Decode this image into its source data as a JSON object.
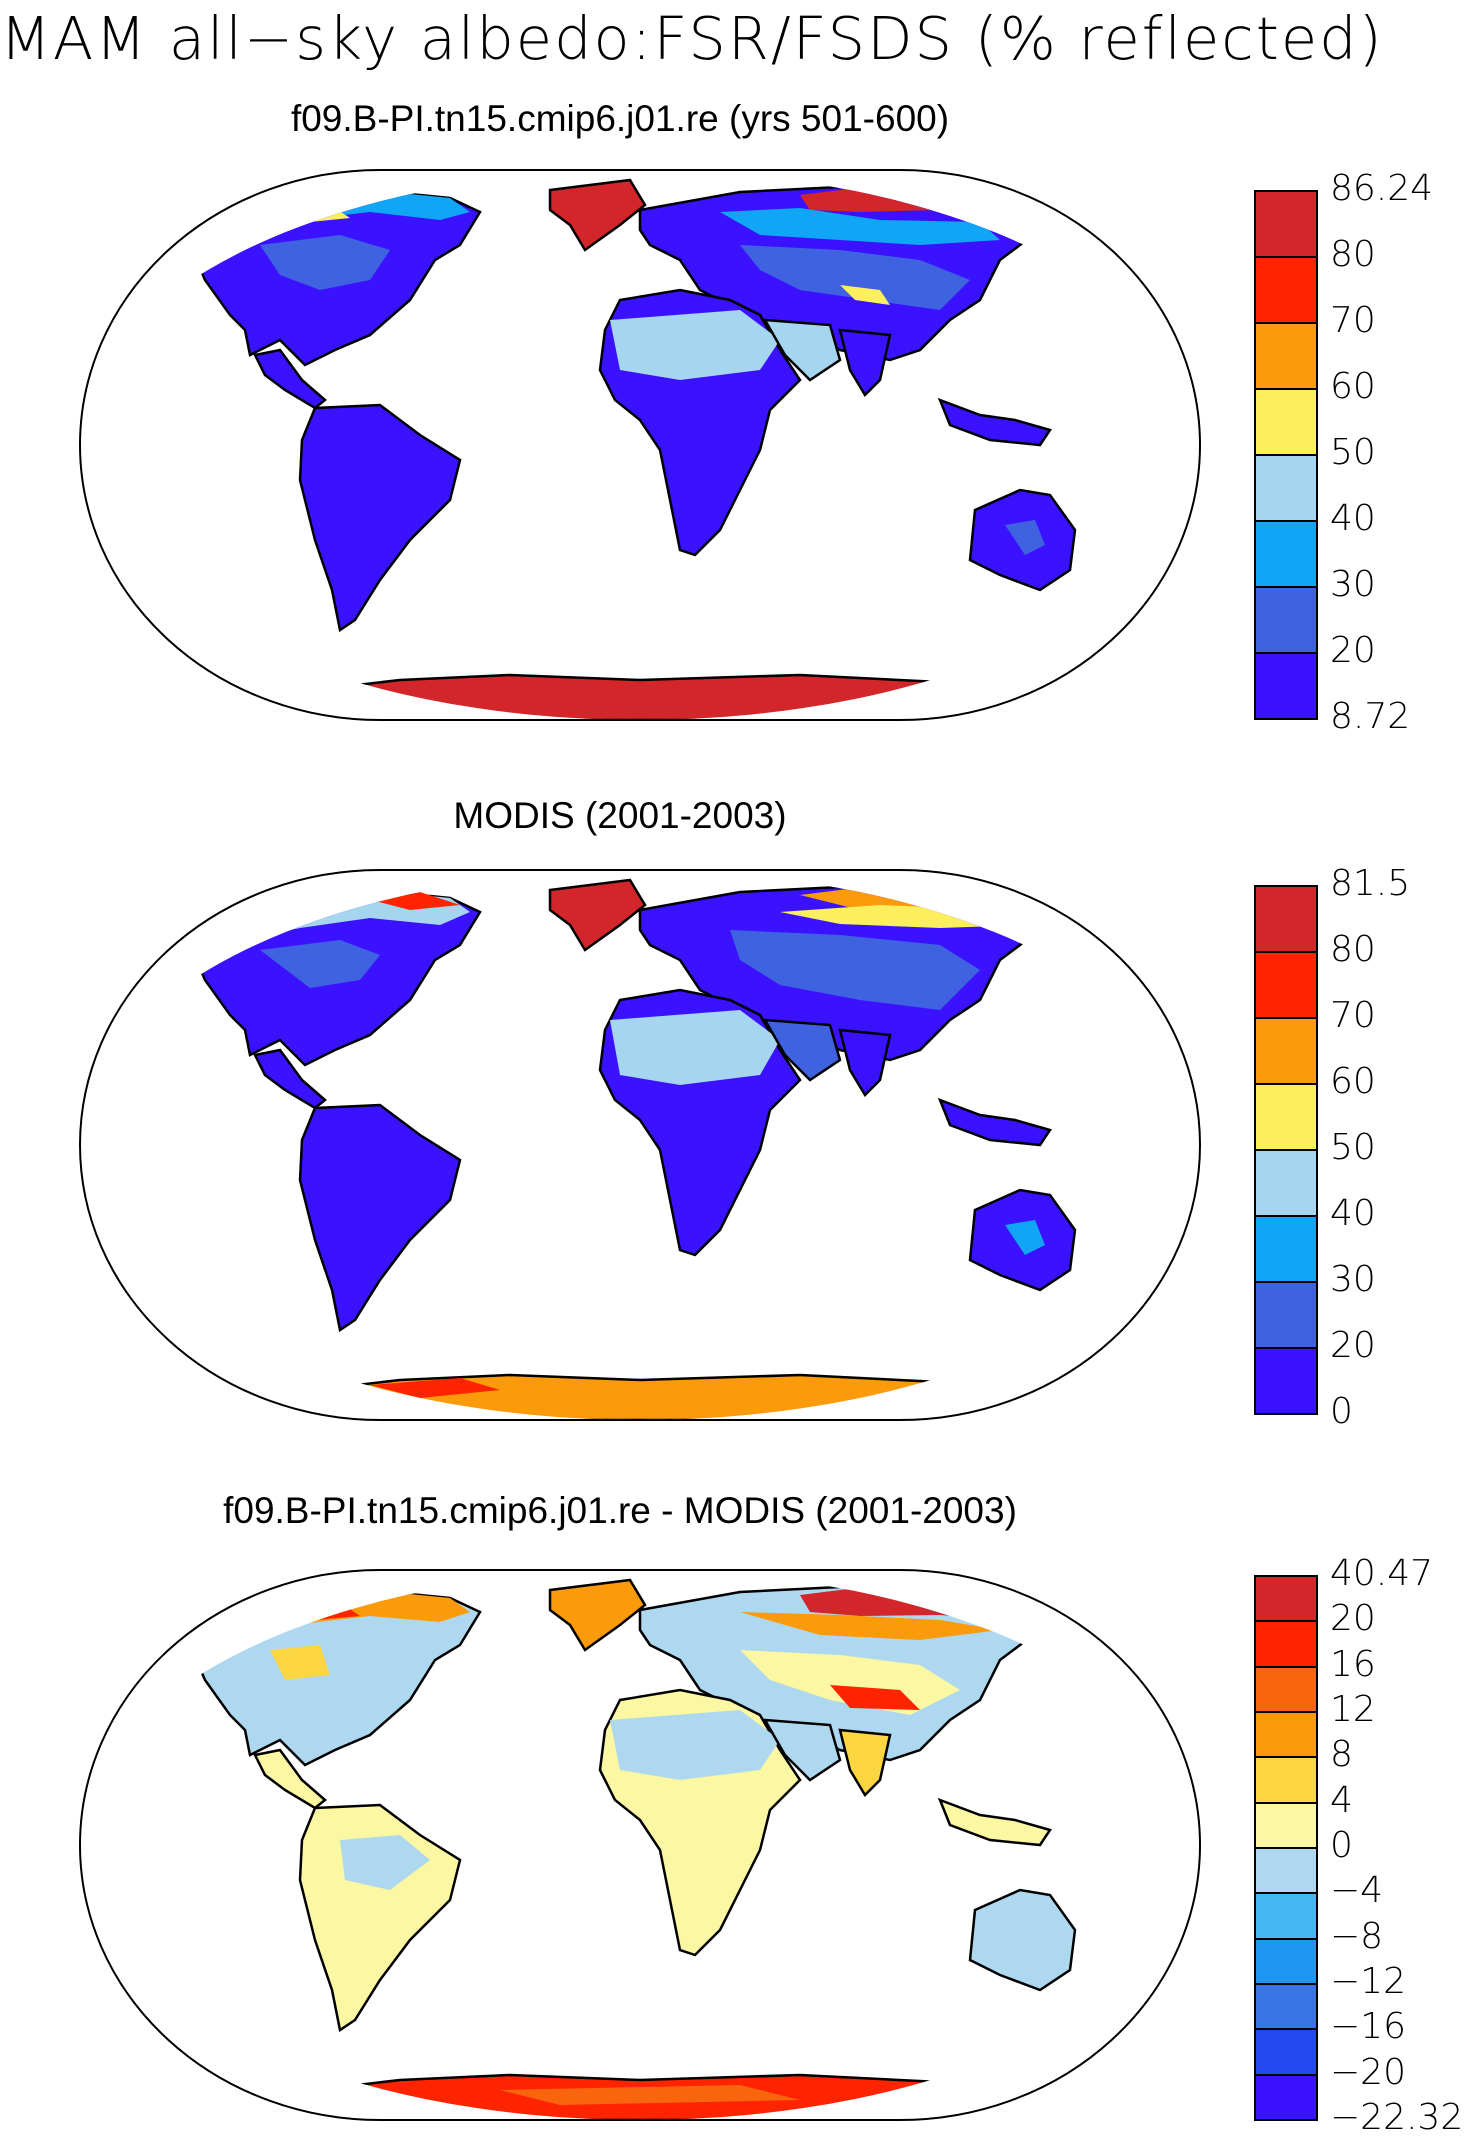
{
  "main_title": "MAM all−sky albedo:FSR/FSDS (% reflected)",
  "colors": {
    "ocean": "#ffffff",
    "coast": "#000000",
    "abs_scale": [
      "#3a12ff",
      "#3f63e0",
      "#10a6f5",
      "#a6d5ef",
      "#fbef5e",
      "#fb9a0a",
      "#ff2400",
      "#d2262a"
    ],
    "diff_scale": [
      "#3a12ff",
      "#2348f0",
      "#3a75e6",
      "#1f96ef",
      "#45b8f2",
      "#add8ef",
      "#fbf7a2",
      "#fcd543",
      "#fb9a0a",
      "#f9650d",
      "#ff2400",
      "#d2262a"
    ]
  },
  "panels": [
    {
      "title": "f09.B-PI.tn15.cmip6.j01.re (yrs 501-600)",
      "colorbar_labels": [
        "86.24",
        "80",
        "70",
        "60",
        "50",
        "40",
        "30",
        "20",
        "8.72"
      ],
      "scale": "abs"
    },
    {
      "title": "MODIS (2001-2003)",
      "colorbar_labels": [
        "81.5",
        "80",
        "70",
        "60",
        "50",
        "40",
        "30",
        "20",
        "0"
      ],
      "scale": "abs"
    },
    {
      "title": "f09.B-PI.tn15.cmip6.j01.re - MODIS (2001-2003)",
      "colorbar_labels": [
        "40.47",
        "20",
        "16",
        "12",
        "8",
        "4",
        "0",
        "−4",
        "−8",
        "−12",
        "−16",
        "−20",
        "−22.32"
      ],
      "scale": "diff"
    }
  ]
}
